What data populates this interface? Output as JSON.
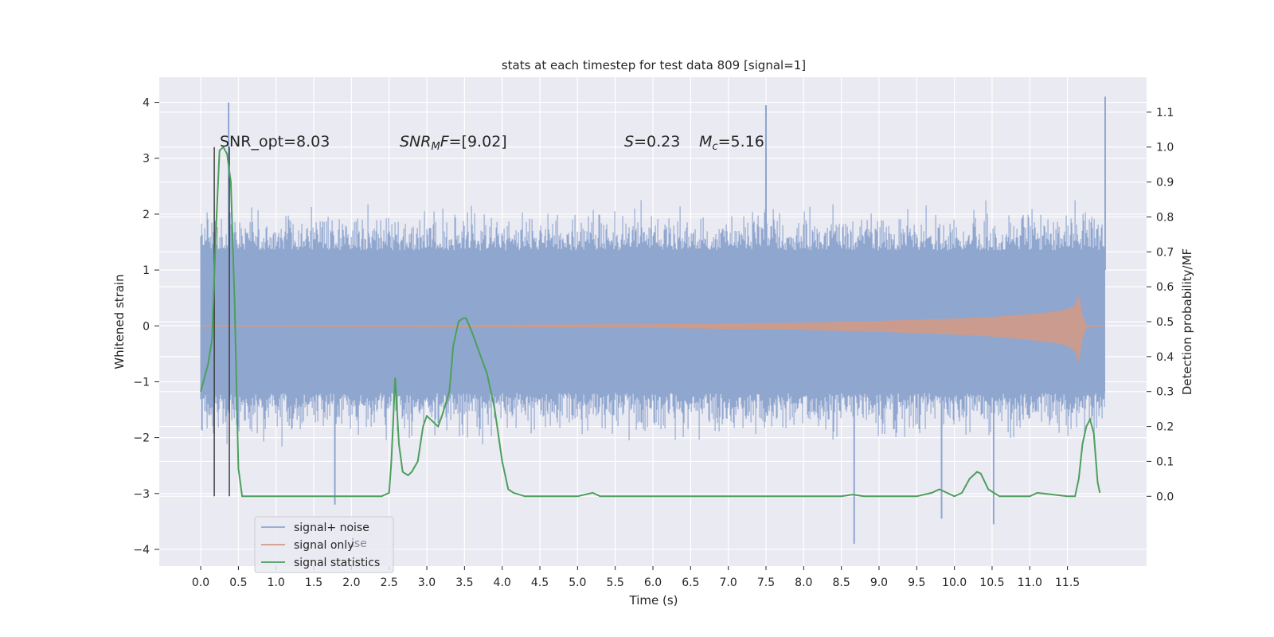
{
  "chart_data": {
    "type": "line",
    "title": "stats at each timestep for test data 809 [signal=1]",
    "xlabel": "Time (s)",
    "ylabel": "Whitened strain",
    "ylabel_right": "Detection probability/MF",
    "xlim": [
      -0.55,
      12.55
    ],
    "ylim": [
      -4.3,
      4.45
    ],
    "ylim_right": [
      -0.2,
      1.2
    ],
    "x_ticks": [
      "0.0",
      "0.5",
      "1.0",
      "1.5",
      "2.0",
      "2.5",
      "3.0",
      "3.5",
      "4.0",
      "4.5",
      "5.0",
      "5.5",
      "6.0",
      "6.5",
      "7.0",
      "7.5",
      "8.0",
      "8.5",
      "9.0",
      "9.5",
      "10.0",
      "10.5",
      "11.0",
      "11.5"
    ],
    "y_ticks": [
      "4",
      "3",
      "2",
      "1",
      "0",
      "−1",
      "−2",
      "−3",
      "−4"
    ],
    "y_ticks_right": [
      "1.1",
      "1.0",
      "0.9",
      "0.8",
      "0.7",
      "0.6",
      "0.5",
      "0.4",
      "0.3",
      "0.2",
      "0.1",
      "0.0"
    ],
    "annotations": {
      "snr_opt": "SNR_opt=8.03",
      "snr_mf_italic": "SNR",
      "snr_mf_sub": "M",
      "snr_mf_italic2": "F",
      "snr_mf_value": "=[9.02]",
      "s_italic": "S",
      "s_value": "=0.23",
      "mc_italic": "M",
      "mc_sub": "c",
      "mc_value": "=5.16"
    },
    "legend": {
      "items": [
        "signal+ noise",
        "signal only",
        "signal statistics"
      ],
      "ghost_text": "ise"
    },
    "colors": {
      "background": "#eaeaf2",
      "grid": "#ffffff",
      "signal_noise": "#8fa6cf",
      "signal_only": "#d39a84",
      "statistics": "#4c9f5c",
      "marker": "#333333"
    },
    "markers_x": [
      0.18,
      0.38
    ],
    "markers_y_range": [
      -3.05,
      3.2
    ],
    "noise": {
      "x_start": 0.0,
      "x_end": 12.0,
      "band": [
        -1.2,
        1.35
      ],
      "spike_x": [
        0.37,
        1.78,
        7.5,
        8.67,
        9.83,
        10.52,
        12.0
      ],
      "spike_y": [
        4.0,
        -3.2,
        3.95,
        -3.9,
        -3.45,
        -3.55,
        4.1
      ]
    },
    "signal_only": {
      "x": [
        0.0,
        2.0,
        4.0,
        6.0,
        8.0,
        9.0,
        10.0,
        10.5,
        11.0,
        11.3,
        11.5,
        11.6,
        11.65,
        11.7,
        11.75,
        12.0
      ],
      "amp": [
        0.01,
        0.015,
        0.02,
        0.03,
        0.06,
        0.09,
        0.13,
        0.16,
        0.21,
        0.25,
        0.3,
        0.38,
        0.55,
        0.2,
        0.02,
        0.0
      ]
    },
    "series": [
      {
        "name": "signal statistics",
        "x": [
          0.0,
          0.1,
          0.15,
          0.2,
          0.25,
          0.3,
          0.35,
          0.4,
          0.45,
          0.5,
          0.55,
          0.6,
          1.0,
          2.0,
          2.4,
          2.5,
          2.53,
          2.58,
          2.63,
          2.68,
          2.75,
          2.8,
          2.88,
          2.95,
          3.0,
          3.05,
          3.1,
          3.15,
          3.2,
          3.3,
          3.35,
          3.42,
          3.48,
          3.52,
          3.6,
          3.7,
          3.8,
          3.9,
          4.0,
          4.08,
          4.15,
          4.3,
          5.0,
          5.2,
          5.3,
          6.0,
          8.0,
          8.5,
          8.65,
          8.8,
          9.5,
          9.7,
          9.8,
          9.9,
          10.0,
          10.1,
          10.2,
          10.3,
          10.35,
          10.45,
          10.6,
          11.0,
          11.1,
          11.5,
          11.6,
          11.65,
          11.7,
          11.75,
          11.8,
          11.85,
          11.9,
          11.93
        ],
        "values": [
          0.3,
          0.38,
          0.45,
          0.75,
          0.99,
          1.0,
          0.98,
          0.9,
          0.55,
          0.08,
          0.0,
          0.0,
          0.0,
          0.0,
          0.0,
          0.01,
          0.1,
          0.34,
          0.15,
          0.07,
          0.06,
          0.07,
          0.1,
          0.2,
          0.23,
          0.22,
          0.21,
          0.2,
          0.23,
          0.3,
          0.43,
          0.5,
          0.51,
          0.51,
          0.47,
          0.41,
          0.35,
          0.25,
          0.1,
          0.02,
          0.01,
          0.0,
          0.0,
          0.01,
          0.0,
          0.0,
          0.0,
          0.0,
          0.005,
          0.0,
          0.0,
          0.01,
          0.02,
          0.01,
          0.0,
          0.01,
          0.05,
          0.07,
          0.065,
          0.02,
          0.0,
          0.0,
          0.01,
          0.0,
          0.0,
          0.05,
          0.15,
          0.2,
          0.22,
          0.18,
          0.04,
          0.01
        ]
      }
    ]
  }
}
